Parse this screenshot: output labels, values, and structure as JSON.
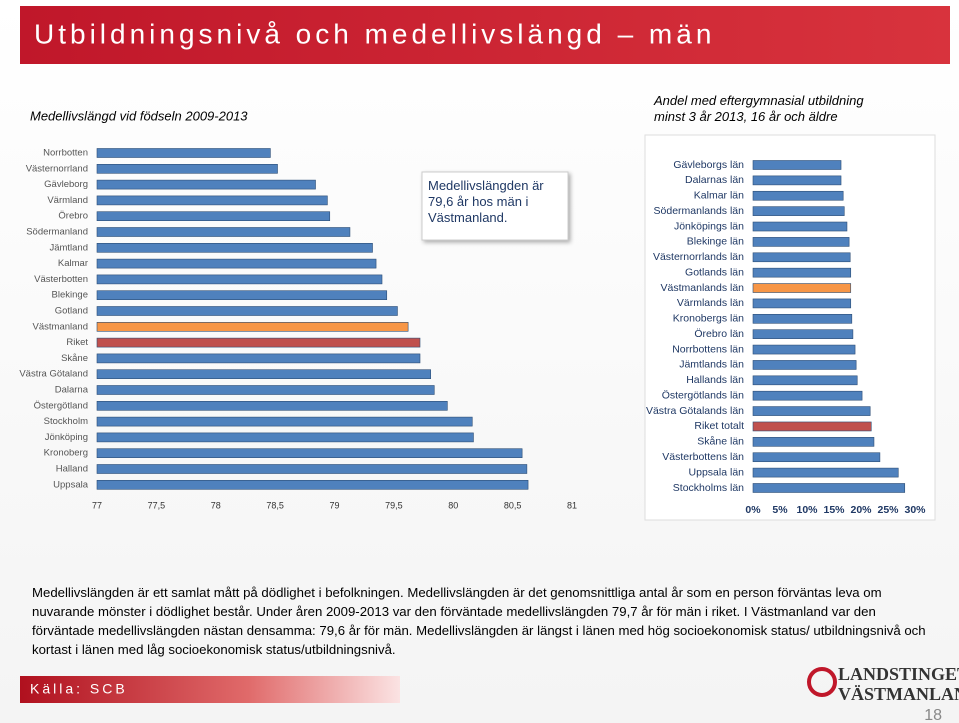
{
  "slide": {
    "title": "Utbildningsnivå och medellivslängd – män",
    "body": "Medellivslängden är ett samlat mått på dödlighet i befolkningen. Medellivslängden är det genomsnittliga antal år som en person förväntas leva om nuvarande mönster i dödlighet består. Under åren 2009-2013 var den förväntade medellivslängden 79,7 år för män i riket. I Västmanland var den förväntade medellivslängden nästan densamma: 79,6 år för män. Medellivslängden är längst i länen med hög socioekonomisk status/ utbildningsnivå och kortast i länen med låg socioekonomisk status/utbildningsnivå.",
    "source": "Källa: SCB",
    "logo": [
      "LANDSTINGET",
      "VÄSTMANLAND"
    ],
    "page": "18"
  },
  "chart_data": [
    {
      "type": "hbar",
      "title": "Medellivslängd vid födseln 2009-2013",
      "annotation": "Medellivslängden är 79,6 år hos män i Västmanland.",
      "categories": [
        "Norrbotten",
        "Västernorrland",
        "Gävleborg",
        "Värmland",
        "Örebro",
        "Södermanland",
        "Jämtland",
        "Kalmar",
        "Västerbotten",
        "Blekinge",
        "Gotland",
        "Västmanland",
        "Riket",
        "Skåne",
        "Västra Götaland",
        "Dalarna",
        "Östergötland",
        "Stockholm",
        "Jönköping",
        "Kronoberg",
        "Halland",
        "Uppsala"
      ],
      "values": [
        78.46,
        78.52,
        78.84,
        78.94,
        78.96,
        79.13,
        79.32,
        79.35,
        79.4,
        79.44,
        79.53,
        79.62,
        79.72,
        79.72,
        79.81,
        79.84,
        79.95,
        80.16,
        80.17,
        80.58,
        80.62,
        80.63
      ],
      "colors": [
        "#4f81bd",
        "#4f81bd",
        "#4f81bd",
        "#4f81bd",
        "#4f81bd",
        "#4f81bd",
        "#4f81bd",
        "#4f81bd",
        "#4f81bd",
        "#4f81bd",
        "#4f81bd",
        "#f79646",
        "#c0504d",
        "#4f81bd",
        "#4f81bd",
        "#4f81bd",
        "#4f81bd",
        "#4f81bd",
        "#4f81bd",
        "#4f81bd",
        "#4f81bd",
        "#4f81bd"
      ],
      "xlim": [
        77,
        81
      ],
      "xticks": [
        77,
        {
          "value": 77.5,
          "label": "77,5"
        },
        78,
        {
          "value": 78.5,
          "label": "78,5"
        },
        79,
        {
          "value": 79.5,
          "label": "79,5"
        },
        80,
        {
          "value": 80.5,
          "label": "80,5"
        },
        81
      ]
    },
    {
      "type": "hbar",
      "title": "Andel med eftergymnasial utbildning minst 3 år 2013, 16 år och äldre",
      "categories": [
        "Gävleborgs län",
        "Dalarnas län",
        "Kalmar län",
        "Södermanlands län",
        "Jönköpings län",
        "Blekinge län",
        "Västernorrlands län",
        "Gotlands län",
        "Västmanlands län",
        "Värmlands län",
        "Kronobergs län",
        "Örebro län",
        "Norrbottens län",
        "Jämtlands län",
        "Hallands län",
        "Östergötlands län",
        "Västra Götalands län",
        "Riket totalt",
        "Skåne län",
        "Västerbottens län",
        "Uppsala län",
        "Stockholms län"
      ],
      "values": [
        16.3,
        16.3,
        16.7,
        16.9,
        17.4,
        17.8,
        18.0,
        18.1,
        18.1,
        18.1,
        18.3,
        18.5,
        18.9,
        19.1,
        19.3,
        20.2,
        21.7,
        21.9,
        22.4,
        23.5,
        26.9,
        28.1
      ],
      "colors": [
        "#4f81bd",
        "#4f81bd",
        "#4f81bd",
        "#4f81bd",
        "#4f81bd",
        "#4f81bd",
        "#4f81bd",
        "#4f81bd",
        "#f79646",
        "#4f81bd",
        "#4f81bd",
        "#4f81bd",
        "#4f81bd",
        "#4f81bd",
        "#4f81bd",
        "#4f81bd",
        "#4f81bd",
        "#c0504d",
        "#4f81bd",
        "#4f81bd",
        "#4f81bd",
        "#4f81bd"
      ],
      "xlim": [
        0,
        30
      ],
      "xticks": [
        {
          "value": 0,
          "label": "0%"
        },
        {
          "value": 5,
          "label": "5%"
        },
        {
          "value": 10,
          "label": "10%"
        },
        {
          "value": 15,
          "label": "15%"
        },
        {
          "value": 20,
          "label": "20%"
        },
        {
          "value": 25,
          "label": "25%"
        },
        {
          "value": 30,
          "label": "30%"
        }
      ]
    }
  ]
}
